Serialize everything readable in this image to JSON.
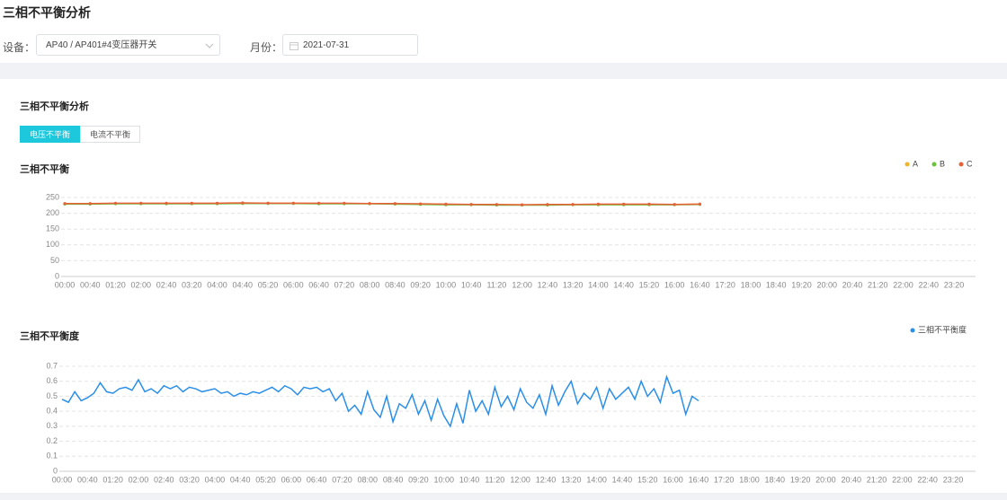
{
  "header": {
    "title": "三相不平衡分析"
  },
  "filters": {
    "device_label": "设备：",
    "device_value": "AP40 / AP401#4变压器开关",
    "month_label": "月份：",
    "month_value": "2021-07-31"
  },
  "panel": {
    "title": "三相不平衡分析",
    "tabs": [
      "电压不平衡",
      "电流不平衡"
    ],
    "active_tab": 0
  },
  "chart_data": [
    {
      "type": "line",
      "title": "三相不平衡",
      "categories": [
        "00:00",
        "00:40",
        "01:20",
        "02:00",
        "02:40",
        "03:20",
        "04:00",
        "04:40",
        "05:20",
        "06:00",
        "06:40",
        "07:20",
        "08:00",
        "08:40",
        "09:20",
        "10:00",
        "10:40",
        "11:20",
        "12:00",
        "12:40",
        "13:20",
        "14:00",
        "14:40",
        "15:20",
        "16:00",
        "16:40",
        "17:20",
        "18:00",
        "18:40",
        "19:20",
        "20:00",
        "20:40",
        "21:20",
        "22:00",
        "22:40",
        "23:20"
      ],
      "series": [
        {
          "name": "A",
          "color": "#f0b429",
          "values": [
            230,
            230,
            231,
            231,
            231,
            231,
            231,
            232,
            232,
            232,
            231,
            231,
            231,
            230,
            229,
            228,
            228,
            227,
            227,
            227,
            228,
            228,
            228,
            228,
            228,
            229,
            null,
            null,
            null,
            null,
            null,
            null,
            null,
            null,
            null,
            null
          ]
        },
        {
          "name": "B",
          "color": "#67c23a",
          "values": [
            229,
            229,
            230,
            230,
            230,
            230,
            230,
            231,
            231,
            231,
            230,
            230,
            230,
            229,
            228,
            227,
            227,
            226,
            226,
            226,
            227,
            227,
            227,
            227,
            227,
            228,
            null,
            null,
            null,
            null,
            null,
            null,
            null,
            null,
            null,
            null
          ]
        },
        {
          "name": "C",
          "color": "#e8603a",
          "values": [
            231,
            231,
            232,
            232,
            232,
            232,
            232,
            233,
            232,
            232,
            232,
            232,
            231,
            231,
            230,
            229,
            228,
            228,
            227,
            228,
            228,
            229,
            229,
            229,
            228,
            229,
            null,
            null,
            null,
            null,
            null,
            null,
            null,
            null,
            null,
            null
          ]
        }
      ],
      "ylim": [
        0,
        250
      ],
      "yticks": [
        0,
        50,
        100,
        150,
        200,
        250
      ],
      "grid": true,
      "legend": "top-right",
      "markers": true
    },
    {
      "type": "line",
      "title": "三相不平衡度",
      "categories": [
        "00:00",
        null,
        null,
        null,
        "00:40",
        null,
        null,
        null,
        "01:20",
        null,
        null,
        null,
        "02:00",
        null,
        null,
        null,
        "02:40",
        null,
        null,
        null,
        "03:20",
        null,
        null,
        null,
        "04:00",
        null,
        null,
        null,
        "04:40",
        null,
        null,
        null,
        "05:20",
        null,
        null,
        null,
        "06:00",
        null,
        null,
        null,
        "06:40",
        null,
        null,
        null,
        "07:20",
        null,
        null,
        null,
        "08:00",
        null,
        null,
        null,
        "08:40",
        null,
        null,
        null,
        "09:20",
        null,
        null,
        null,
        "10:00",
        null,
        null,
        null,
        "10:40",
        null,
        null,
        null,
        "11:20",
        null,
        null,
        null,
        "12:00",
        null,
        null,
        null,
        "12:40",
        null,
        null,
        null,
        "13:20",
        null,
        null,
        null,
        "14:00",
        null,
        null,
        null,
        "14:40",
        null,
        null,
        null,
        "15:20",
        null,
        null,
        null,
        "16:00",
        null,
        null,
        null,
        "16:40",
        null,
        null,
        null,
        "17:20",
        null,
        null,
        null,
        "18:00",
        null,
        null,
        null,
        "18:40",
        null,
        null,
        null,
        "19:20",
        null,
        null,
        null,
        "20:00",
        null,
        null,
        null,
        "20:40",
        null,
        null,
        null,
        "21:20",
        null,
        null,
        null,
        "22:00",
        null,
        null,
        null,
        "22:40",
        null,
        null,
        null,
        "23:20",
        null,
        null,
        null
      ],
      "series": [
        {
          "name": "三相不平衡度",
          "color": "#2a8fe8",
          "values": [
            0.48,
            0.46,
            0.53,
            0.47,
            0.49,
            0.52,
            0.59,
            0.53,
            0.52,
            0.55,
            0.56,
            0.54,
            0.61,
            0.53,
            0.55,
            0.52,
            0.57,
            0.55,
            0.57,
            0.53,
            0.56,
            0.55,
            0.53,
            0.54,
            0.55,
            0.52,
            0.53,
            0.5,
            0.52,
            0.51,
            0.53,
            0.52,
            0.54,
            0.56,
            0.53,
            0.57,
            0.55,
            0.51,
            0.56,
            0.55,
            0.56,
            0.53,
            0.55,
            0.47,
            0.52,
            0.4,
            0.44,
            0.38,
            0.53,
            0.41,
            0.36,
            0.5,
            0.33,
            0.45,
            0.42,
            0.51,
            0.38,
            0.47,
            0.34,
            0.48,
            0.37,
            0.3,
            0.45,
            0.32,
            0.54,
            0.4,
            0.47,
            0.38,
            0.56,
            0.43,
            0.5,
            0.41,
            0.55,
            0.46,
            0.42,
            0.51,
            0.38,
            0.57,
            0.44,
            0.53,
            0.6,
            0.45,
            0.52,
            0.48,
            0.56,
            0.42,
            0.55,
            0.48,
            0.52,
            0.56,
            0.48,
            0.6,
            0.5,
            0.55,
            0.46,
            0.63,
            0.52,
            0.54,
            0.38,
            0.5,
            0.47,
            null,
            null,
            null,
            null,
            null,
            null,
            null,
            null,
            null,
            null,
            null,
            null,
            null,
            null,
            null,
            null,
            null,
            null,
            null,
            null,
            null,
            null,
            null,
            null,
            null,
            null,
            null,
            null,
            null,
            null,
            null,
            null,
            null,
            null,
            null,
            null,
            null,
            null,
            null,
            null,
            null,
            null,
            null
          ]
        }
      ],
      "ylim": [
        0,
        0.7
      ],
      "yticks": [
        0,
        0.1,
        0.2,
        0.3,
        0.4,
        0.5,
        0.6,
        0.7
      ],
      "grid": true,
      "legend": "top-right",
      "markers": false
    }
  ]
}
